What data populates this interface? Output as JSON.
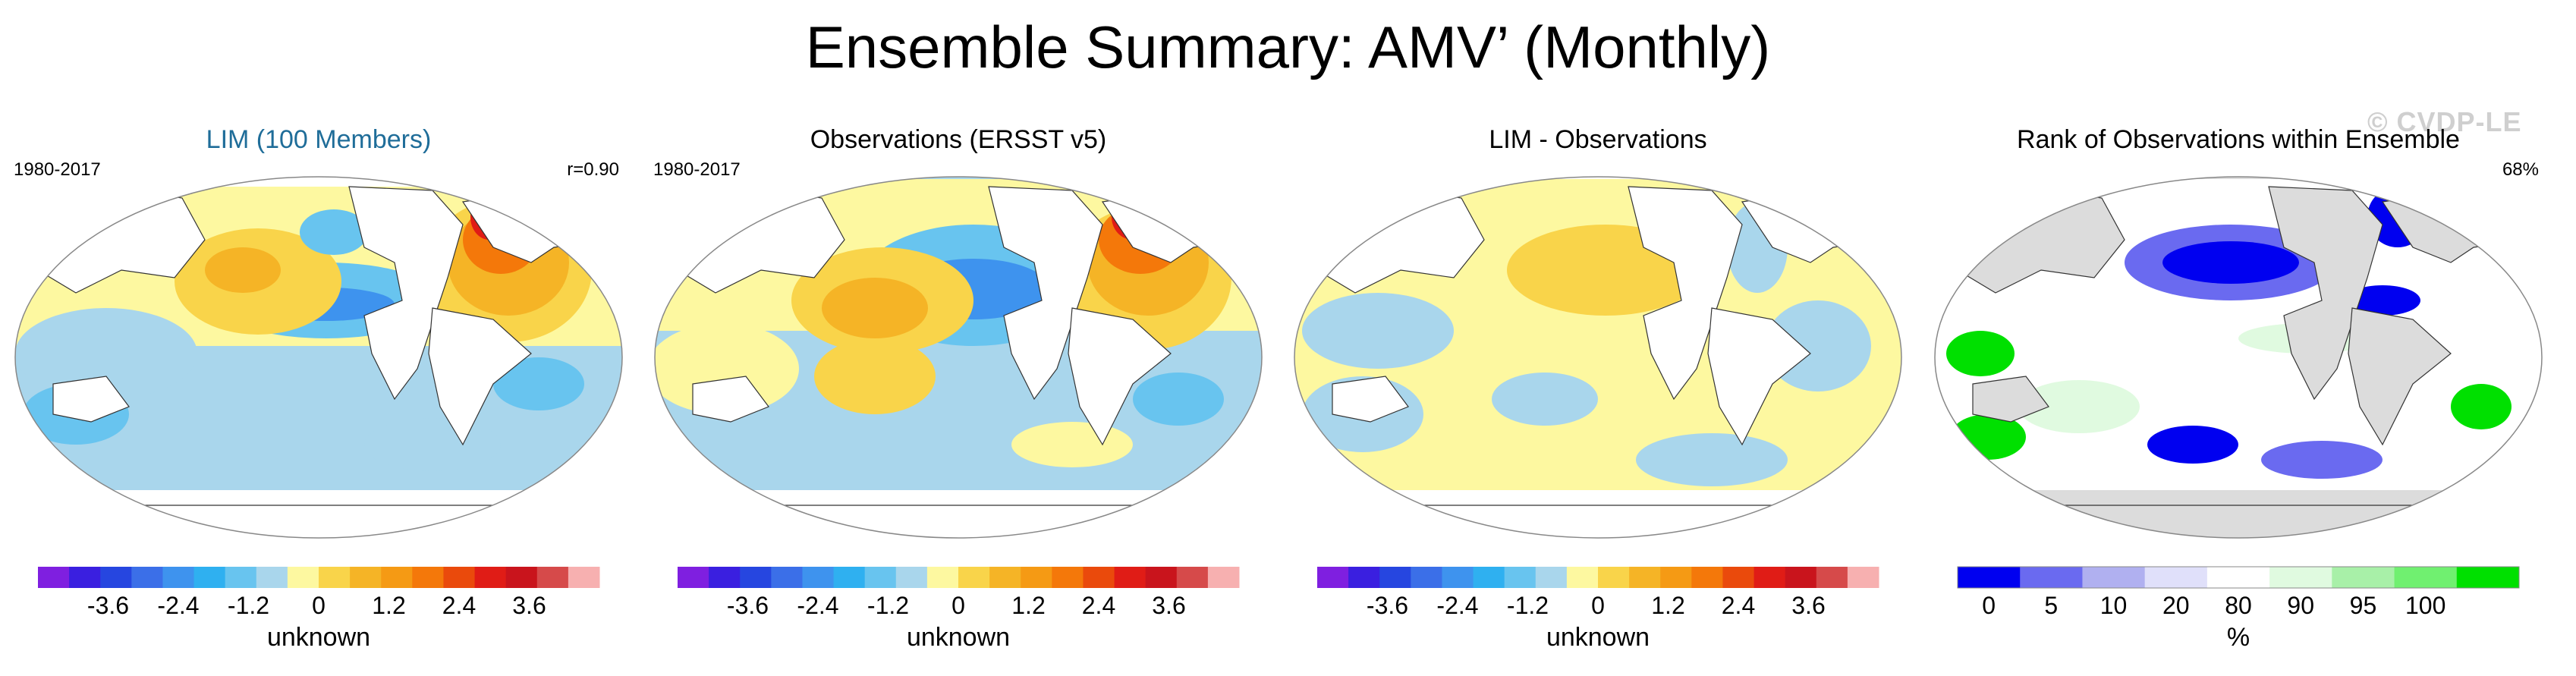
{
  "figure_title": "Ensemble Summary: AMV’ (Monthly)",
  "watermark": "© CVDP-LE",
  "panels": [
    {
      "title": "LIM (100 Members)",
      "left_label": "1980-2017",
      "right_label": "r=0.90",
      "colorbar": {
        "ticks": [
          "-3.6",
          "-2.4",
          "-1.2",
          "0",
          "1.2",
          "2.4",
          "3.6"
        ],
        "label": "unknown"
      }
    },
    {
      "title": "Observations (ERSST v5)",
      "left_label": "1980-2017",
      "right_label": "",
      "colorbar": {
        "ticks": [
          "-3.6",
          "-2.4",
          "-1.2",
          "0",
          "1.2",
          "2.4",
          "3.6"
        ],
        "label": "unknown"
      }
    },
    {
      "title": "LIM - Observations",
      "left_label": "",
      "right_label": "",
      "colorbar": {
        "ticks": [
          "-3.6",
          "-2.4",
          "-1.2",
          "0",
          "1.2",
          "2.4",
          "3.6"
        ],
        "label": "unknown"
      }
    },
    {
      "title": "Rank of Observations within Ensemble",
      "left_label": "",
      "right_label": "68%",
      "colorbar": {
        "ticks": [
          "0",
          "5",
          "10",
          "20",
          "80",
          "90",
          "95",
          "100"
        ],
        "label": "%"
      }
    }
  ],
  "colors": {
    "diverging": [
      "#7f1fe0",
      "#3a1fe0",
      "#2646e0",
      "#3b6fe8",
      "#3e93ee",
      "#2fb0f0",
      "#68c4ef",
      "#a9d6ec",
      "#fdf8a0",
      "#f9d44a",
      "#f5b426",
      "#f59a14",
      "#f4780a",
      "#ea4a0c",
      "#e01c16",
      "#c9141c",
      "#d64a4a",
      "#f7b0b0"
    ],
    "rank": [
      "#0000f0",
      "#6a6af0",
      "#b0b0f0",
      "#e0e0fa",
      "#ffffff",
      "#e0fae0",
      "#a8f0a8",
      "#70f070",
      "#00e000"
    ],
    "land": "#ffffff",
    "land_rank": "#dcdcdc",
    "ocean_neutral": "#ffffff"
  }
}
